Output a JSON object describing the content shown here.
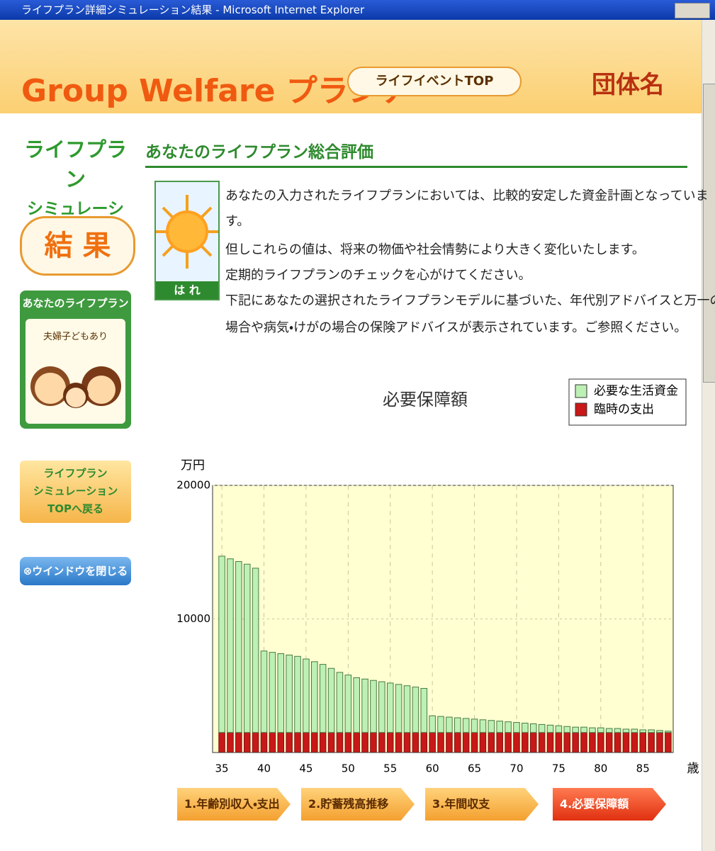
{
  "window": {
    "title": "ライフプラン詳細シミュレーション結果 - Microsoft Internet Explorer"
  },
  "header": {
    "logo": "Group Welfare プランナー",
    "button": "ライフイベントTOP",
    "org": "団体名"
  },
  "sidebar": {
    "title_lines": [
      "ライフプラン",
      "シミュレーション"
    ],
    "result": "結 果",
    "plan_title": "あなたのライフプラン",
    "plan_model": "夫婦子どもあり",
    "back_lines": [
      "ライフプラン",
      "シミュレーション",
      "TOPへ戻る"
    ],
    "close": "⊗ウインドウを閉じる"
  },
  "main": {
    "heading": "あなたのライフプラン総合評価",
    "weather": "は れ",
    "lines": [
      "あなたの入力されたライフプランにおいては、比較的安定した資金計画となっていま",
      "す。",
      "但しこれらの値は、将来の物価や社会情勢により大きく変化いたします。",
      "定期的ライフプランのチェックを心がけてください。",
      "下記にあなたの選択されたライフプランモデルに基づいた、年代別アドバイスと万一の",
      "場合や病気・けがの場合の保険アドバイスが表示されています。ご参照ください。"
    ]
  },
  "chart_data": {
    "type": "stacked-bar",
    "title": "必要保障額",
    "y_label": "万円",
    "x_label": "歳",
    "x": [
      35,
      36,
      37,
      38,
      39,
      40,
      41,
      42,
      43,
      44,
      45,
      46,
      47,
      48,
      49,
      50,
      51,
      52,
      53,
      54,
      55,
      56,
      57,
      58,
      59,
      60,
      61,
      62,
      63,
      64,
      65,
      66,
      67,
      68,
      69,
      70,
      71,
      72,
      73,
      74,
      75,
      76,
      77,
      78,
      79,
      80,
      81,
      82,
      83,
      84,
      85,
      86,
      87,
      88
    ],
    "xlim": [
      33.9,
      88.6
    ],
    "xticks": [
      35,
      40,
      45,
      50,
      55,
      60,
      65,
      70,
      75,
      80,
      85
    ],
    "ylim": [
      0,
      20000
    ],
    "yticks": [
      10000,
      20000
    ],
    "grid": true,
    "legend": "top-right",
    "plot_background": "#ffffd2",
    "series": [
      {
        "name": "臨時の支出",
        "color": "#c81818",
        "values": [
          1500,
          1500,
          1500,
          1500,
          1500,
          1500,
          1500,
          1500,
          1500,
          1500,
          1500,
          1500,
          1500,
          1500,
          1500,
          1500,
          1500,
          1500,
          1500,
          1500,
          1500,
          1500,
          1500,
          1500,
          1500,
          1500,
          1500,
          1500,
          1500,
          1500,
          1500,
          1500,
          1500,
          1500,
          1500,
          1500,
          1500,
          1500,
          1500,
          1500,
          1500,
          1500,
          1500,
          1500,
          1500,
          1500,
          1500,
          1500,
          1500,
          1500,
          1500,
          1500,
          1500,
          1500
        ]
      },
      {
        "name": "必要な生活資金",
        "color": "#bdf0b4",
        "values": [
          13200,
          13000,
          12800,
          12600,
          12300,
          6100,
          6000,
          5900,
          5800,
          5700,
          5500,
          5300,
          5100,
          4800,
          4500,
          4300,
          4100,
          4000,
          3900,
          3800,
          3700,
          3600,
          3500,
          3400,
          3300,
          1250,
          1200,
          1150,
          1100,
          1050,
          1000,
          950,
          900,
          850,
          800,
          750,
          700,
          650,
          600,
          550,
          500,
          450,
          400,
          400,
          350,
          350,
          300,
          300,
          250,
          250,
          200,
          200,
          150,
          100
        ]
      }
    ]
  },
  "tabs": [
    "1.年齢別収入・支出",
    "2.貯蓄残高推移",
    "3.年間収支",
    "4.必要保障額"
  ]
}
